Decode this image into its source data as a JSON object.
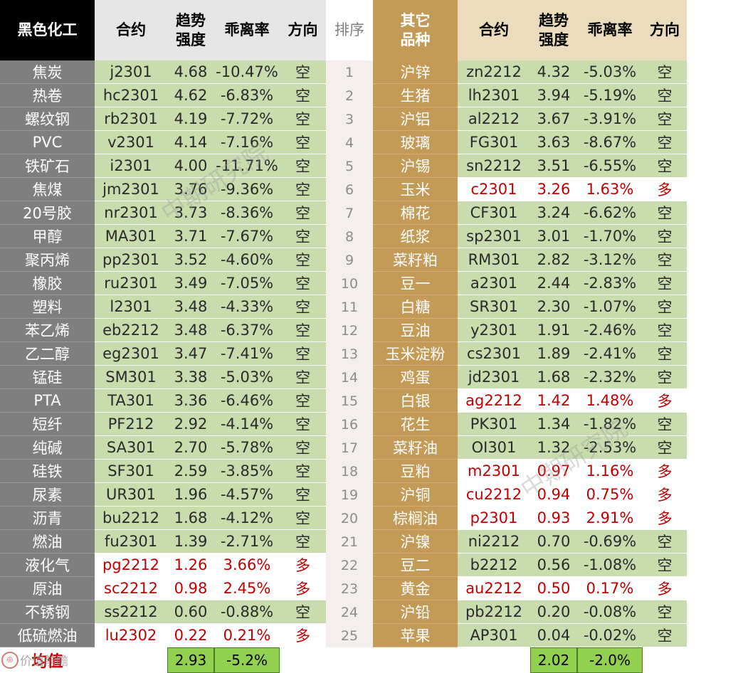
{
  "left_header": {
    "sector": "黑色化工",
    "contract": "合约",
    "strength": "趋势强度",
    "deviation": "乖离率",
    "direction": "方向"
  },
  "rank_header": "排序",
  "right_header": {
    "sector": "其它品种",
    "contract": "合约",
    "strength": "趋势强度",
    "deviation": "乖离率",
    "direction": "方向"
  },
  "rows": [
    {
      "rank": "1",
      "left": {
        "name": "焦炭",
        "contract": "j2301",
        "strength": "4.68",
        "deviation": "-10.47%",
        "direction": "空",
        "bullish": false
      },
      "right": {
        "name": "沪锌",
        "contract": "zn2212",
        "strength": "4.32",
        "deviation": "-5.03%",
        "direction": "空",
        "bullish": false
      }
    },
    {
      "rank": "2",
      "left": {
        "name": "热卷",
        "contract": "hc2301",
        "strength": "4.62",
        "deviation": "-6.83%",
        "direction": "空",
        "bullish": false
      },
      "right": {
        "name": "生猪",
        "contract": "lh2301",
        "strength": "3.94",
        "deviation": "-5.19%",
        "direction": "空",
        "bullish": false
      }
    },
    {
      "rank": "3",
      "left": {
        "name": "螺纹钢",
        "contract": "rb2301",
        "strength": "4.19",
        "deviation": "-7.72%",
        "direction": "空",
        "bullish": false
      },
      "right": {
        "name": "沪铝",
        "contract": "al2212",
        "strength": "3.67",
        "deviation": "-3.91%",
        "direction": "空",
        "bullish": false
      }
    },
    {
      "rank": "4",
      "left": {
        "name": "PVC",
        "contract": "v2301",
        "strength": "4.14",
        "deviation": "-7.16%",
        "direction": "空",
        "bullish": false
      },
      "right": {
        "name": "玻璃",
        "contract": "FG301",
        "strength": "3.63",
        "deviation": "-8.67%",
        "direction": "空",
        "bullish": false
      }
    },
    {
      "rank": "5",
      "left": {
        "name": "铁矿石",
        "contract": "i2301",
        "strength": "4.00",
        "deviation": "-11.71%",
        "direction": "空",
        "bullish": false
      },
      "right": {
        "name": "沪锡",
        "contract": "sn2212",
        "strength": "3.51",
        "deviation": "-6.55%",
        "direction": "空",
        "bullish": false
      }
    },
    {
      "rank": "6",
      "left": {
        "name": "焦煤",
        "contract": "jm2301",
        "strength": "3.76",
        "deviation": "-9.36%",
        "direction": "空",
        "bullish": false
      },
      "right": {
        "name": "玉米",
        "contract": "c2301",
        "strength": "3.26",
        "deviation": "1.63%",
        "direction": "多",
        "bullish": true
      }
    },
    {
      "rank": "7",
      "left": {
        "name": "20号胶",
        "contract": "nr2301",
        "strength": "3.73",
        "deviation": "-8.36%",
        "direction": "空",
        "bullish": false
      },
      "right": {
        "name": "棉花",
        "contract": "CF301",
        "strength": "3.24",
        "deviation": "-6.62%",
        "direction": "空",
        "bullish": false
      }
    },
    {
      "rank": "8",
      "left": {
        "name": "甲醇",
        "contract": "MA301",
        "strength": "3.71",
        "deviation": "-7.67%",
        "direction": "空",
        "bullish": false
      },
      "right": {
        "name": "纸浆",
        "contract": "sp2301",
        "strength": "3.01",
        "deviation": "-1.70%",
        "direction": "空",
        "bullish": false
      }
    },
    {
      "rank": "9",
      "left": {
        "name": "聚丙烯",
        "contract": "pp2301",
        "strength": "3.52",
        "deviation": "-4.60%",
        "direction": "空",
        "bullish": false
      },
      "right": {
        "name": "菜籽粕",
        "contract": "RM301",
        "strength": "2.82",
        "deviation": "-3.12%",
        "direction": "空",
        "bullish": false
      }
    },
    {
      "rank": "10",
      "left": {
        "name": "橡胶",
        "contract": "ru2301",
        "strength": "3.49",
        "deviation": "-7.05%",
        "direction": "空",
        "bullish": false
      },
      "right": {
        "name": "豆一",
        "contract": "a2301",
        "strength": "2.44",
        "deviation": "-2.83%",
        "direction": "空",
        "bullish": false
      }
    },
    {
      "rank": "11",
      "left": {
        "name": "塑料",
        "contract": "l2301",
        "strength": "3.48",
        "deviation": "-4.33%",
        "direction": "空",
        "bullish": false
      },
      "right": {
        "name": "白糖",
        "contract": "SR301",
        "strength": "2.30",
        "deviation": "-1.07%",
        "direction": "空",
        "bullish": false
      }
    },
    {
      "rank": "12",
      "left": {
        "name": "苯乙烯",
        "contract": "eb2212",
        "strength": "3.48",
        "deviation": "-6.37%",
        "direction": "空",
        "bullish": false
      },
      "right": {
        "name": "豆油",
        "contract": "y2301",
        "strength": "1.91",
        "deviation": "-2.46%",
        "direction": "空",
        "bullish": false
      }
    },
    {
      "rank": "13",
      "left": {
        "name": "乙二醇",
        "contract": "eg2301",
        "strength": "3.47",
        "deviation": "-7.41%",
        "direction": "空",
        "bullish": false
      },
      "right": {
        "name": "玉米淀粉",
        "contract": "cs2301",
        "strength": "1.89",
        "deviation": "-2.41%",
        "direction": "空",
        "bullish": false
      }
    },
    {
      "rank": "14",
      "left": {
        "name": "锰硅",
        "contract": "SM301",
        "strength": "3.38",
        "deviation": "-5.03%",
        "direction": "空",
        "bullish": false
      },
      "right": {
        "name": "鸡蛋",
        "contract": "jd2301",
        "strength": "1.68",
        "deviation": "-2.32%",
        "direction": "空",
        "bullish": false
      }
    },
    {
      "rank": "15",
      "left": {
        "name": "PTA",
        "contract": "TA301",
        "strength": "3.36",
        "deviation": "-6.46%",
        "direction": "空",
        "bullish": false
      },
      "right": {
        "name": "白银",
        "contract": "ag2212",
        "strength": "1.42",
        "deviation": "1.48%",
        "direction": "多",
        "bullish": true
      }
    },
    {
      "rank": "16",
      "left": {
        "name": "短纤",
        "contract": "PF212",
        "strength": "2.92",
        "deviation": "-4.14%",
        "direction": "空",
        "bullish": false
      },
      "right": {
        "name": "花生",
        "contract": "PK301",
        "strength": "1.34",
        "deviation": "-1.82%",
        "direction": "空",
        "bullish": false
      }
    },
    {
      "rank": "17",
      "left": {
        "name": "纯碱",
        "contract": "SA301",
        "strength": "2.70",
        "deviation": "-5.78%",
        "direction": "空",
        "bullish": false
      },
      "right": {
        "name": "菜籽油",
        "contract": "OI301",
        "strength": "1.32",
        "deviation": "-2.53%",
        "direction": "空",
        "bullish": false
      }
    },
    {
      "rank": "18",
      "left": {
        "name": "硅铁",
        "contract": "SF301",
        "strength": "2.59",
        "deviation": "-3.85%",
        "direction": "空",
        "bullish": false
      },
      "right": {
        "name": "豆粕",
        "contract": "m2301",
        "strength": "0.97",
        "deviation": "1.16%",
        "direction": "多",
        "bullish": true
      }
    },
    {
      "rank": "19",
      "left": {
        "name": "尿素",
        "contract": "UR301",
        "strength": "1.96",
        "deviation": "-4.57%",
        "direction": "空",
        "bullish": false
      },
      "right": {
        "name": "沪铜",
        "contract": "cu2212",
        "strength": "0.94",
        "deviation": "0.75%",
        "direction": "多",
        "bullish": true
      }
    },
    {
      "rank": "20",
      "left": {
        "name": "沥青",
        "contract": "bu2212",
        "strength": "1.68",
        "deviation": "-4.12%",
        "direction": "空",
        "bullish": false
      },
      "right": {
        "name": "棕榈油",
        "contract": "p2301",
        "strength": "0.93",
        "deviation": "2.91%",
        "direction": "多",
        "bullish": true
      }
    },
    {
      "rank": "21",
      "left": {
        "name": "燃油",
        "contract": "fu2301",
        "strength": "1.39",
        "deviation": "-2.71%",
        "direction": "空",
        "bullish": false
      },
      "right": {
        "name": "沪镍",
        "contract": "ni2212",
        "strength": "0.70",
        "deviation": "-0.69%",
        "direction": "空",
        "bullish": false
      }
    },
    {
      "rank": "22",
      "left": {
        "name": "液化气",
        "contract": "pg2212",
        "strength": "1.26",
        "deviation": "3.66%",
        "direction": "多",
        "bullish": true
      },
      "right": {
        "name": "豆二",
        "contract": "b2212",
        "strength": "0.56",
        "deviation": "-1.08%",
        "direction": "空",
        "bullish": false
      }
    },
    {
      "rank": "23",
      "left": {
        "name": "原油",
        "contract": "sc2212",
        "strength": "0.98",
        "deviation": "2.45%",
        "direction": "多",
        "bullish": true
      },
      "right": {
        "name": "黄金",
        "contract": "au2212",
        "strength": "0.50",
        "deviation": "0.17%",
        "direction": "多",
        "bullish": true
      }
    },
    {
      "rank": "24",
      "left": {
        "name": "不锈钢",
        "contract": "ss2212",
        "strength": "0.60",
        "deviation": "-0.88%",
        "direction": "空",
        "bullish": false
      },
      "right": {
        "name": "沪铅",
        "contract": "pb2212",
        "strength": "0.20",
        "deviation": "-0.08%",
        "direction": "空",
        "bullish": false
      }
    },
    {
      "rank": "25",
      "left": {
        "name": "低硫燃油",
        "contract": "lu2302",
        "strength": "0.22",
        "deviation": "0.21%",
        "direction": "多",
        "bullish": true
      },
      "right": {
        "name": "苹果",
        "contract": "AP301",
        "strength": "0.04",
        "deviation": "-0.02%",
        "direction": "空",
        "bullish": false
      }
    }
  ],
  "footer": {
    "label": "均值",
    "left_strength": "2.93",
    "left_deviation": "-5.2%",
    "right_strength": "2.02",
    "right_deviation": "-2.0%"
  },
  "watermark": "中期研究院",
  "corner_brand": "价值前瞻",
  "colors": {
    "header_black": "#000000",
    "header_gold": "#c49a57",
    "name_grey": "#7f7f7f",
    "bearish_green": "#c8dcae",
    "bullish_red": "#c00000",
    "average_box": "#92d050"
  }
}
